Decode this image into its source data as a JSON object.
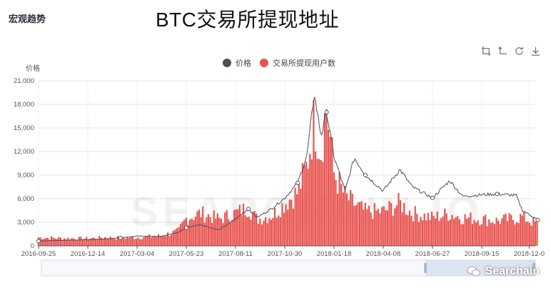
{
  "header": {
    "section_title": "宏观趋势",
    "big_title": "BTC交易所提现地址"
  },
  "toolbar": {
    "icons": [
      "zoom-area-icon",
      "zoom-reset-icon",
      "refresh-icon",
      "download-icon"
    ]
  },
  "brand": {
    "label": "Searchain",
    "watermark": "SEARCHAIN.IO"
  },
  "colors": {
    "price_line": "#4a4f5a",
    "bars": "#e8534f",
    "grid": "#e6e6e6",
    "axis": "#555555"
  },
  "chart_data": {
    "type": "bar",
    "title": "",
    "xlabel": "",
    "ylabel": "价格",
    "ylim": [
      0,
      21000
    ],
    "yticks": [
      0,
      3000,
      6000,
      9000,
      12000,
      15000,
      18000,
      21000
    ],
    "ytick_labels": [
      "0",
      "3,000",
      "6,000",
      "9,000",
      "12,000",
      "15,000",
      "18,000",
      "21,000"
    ],
    "xticks": [
      "2016-09-25",
      "2016-12-14",
      "2017-03-04",
      "2017-05-23",
      "2017-08-11",
      "2017-10-30",
      "2018-01-18",
      "2018-04-08",
      "2018-06-27",
      "2018-09-15",
      "2018-12-0"
    ],
    "legend": {
      "placement": "top-center"
    },
    "series": [
      {
        "name": "价格",
        "kind": "line",
        "points": [
          [
            "2016-09-25",
            600
          ],
          [
            "2016-11-01",
            700
          ],
          [
            "2016-12-14",
            780
          ],
          [
            "2017-01-10",
            900
          ],
          [
            "2017-02-05",
            1000
          ],
          [
            "2017-03-04",
            1250
          ],
          [
            "2017-04-10",
            1200
          ],
          [
            "2017-05-10",
            1700
          ],
          [
            "2017-05-23",
            2300
          ],
          [
            "2017-06-15",
            2700
          ],
          [
            "2017-07-15",
            2000
          ],
          [
            "2017-08-11",
            3400
          ],
          [
            "2017-09-01",
            4700
          ],
          [
            "2017-09-15",
            3600
          ],
          [
            "2017-10-10",
            4800
          ],
          [
            "2017-10-30",
            6100
          ],
          [
            "2017-11-20",
            8000
          ],
          [
            "2017-12-05",
            11500
          ],
          [
            "2017-12-17",
            19300
          ],
          [
            "2017-12-28",
            14000
          ],
          [
            "2018-01-06",
            17000
          ],
          [
            "2018-01-18",
            11300
          ],
          [
            "2018-02-05",
            7000
          ],
          [
            "2018-02-20",
            11200
          ],
          [
            "2018-03-10",
            9000
          ],
          [
            "2018-04-08",
            7000
          ],
          [
            "2018-05-05",
            9700
          ],
          [
            "2018-05-25",
            7500
          ],
          [
            "2018-06-27",
            6100
          ],
          [
            "2018-07-25",
            8300
          ],
          [
            "2018-08-15",
            6300
          ],
          [
            "2018-09-15",
            6500
          ],
          [
            "2018-10-10",
            6600
          ],
          [
            "2018-11-10",
            6400
          ],
          [
            "2018-11-20",
            4500
          ],
          [
            "2018-12-05",
            3800
          ],
          [
            "2018-12-15",
            3300
          ]
        ]
      },
      {
        "name": "交易所提现用户数",
        "kind": "bar",
        "points": [
          [
            "2016-09-25",
            1100
          ],
          [
            "2016-11-01",
            1000
          ],
          [
            "2016-12-14",
            950
          ],
          [
            "2017-01-10",
            1100
          ],
          [
            "2017-02-05",
            1050
          ],
          [
            "2017-03-04",
            1100
          ],
          [
            "2017-04-10",
            1300
          ],
          [
            "2017-05-10",
            1900
          ],
          [
            "2017-05-23",
            3600
          ],
          [
            "2017-06-15",
            4300
          ],
          [
            "2017-07-15",
            3500
          ],
          [
            "2017-08-11",
            4300
          ],
          [
            "2017-09-01",
            5000
          ],
          [
            "2017-09-15",
            3500
          ],
          [
            "2017-10-10",
            4000
          ],
          [
            "2017-10-30",
            5600
          ],
          [
            "2017-11-20",
            7000
          ],
          [
            "2017-12-05",
            10500
          ],
          [
            "2017-12-17",
            16500
          ],
          [
            "2017-12-28",
            12500
          ],
          [
            "2018-01-06",
            18500
          ],
          [
            "2018-01-18",
            9500
          ],
          [
            "2018-02-05",
            6500
          ],
          [
            "2018-02-20",
            5500
          ],
          [
            "2018-03-10",
            4500
          ],
          [
            "2018-04-08",
            4500
          ],
          [
            "2018-05-05",
            5600
          ],
          [
            "2018-05-25",
            4300
          ],
          [
            "2018-06-27",
            3700
          ],
          [
            "2018-07-25",
            4200
          ],
          [
            "2018-08-15",
            3700
          ],
          [
            "2018-09-15",
            3500
          ],
          [
            "2018-10-10",
            3300
          ],
          [
            "2018-11-10",
            3600
          ],
          [
            "2018-11-20",
            3800
          ],
          [
            "2018-12-05",
            3200
          ],
          [
            "2018-12-15",
            2900
          ]
        ]
      }
    ]
  }
}
